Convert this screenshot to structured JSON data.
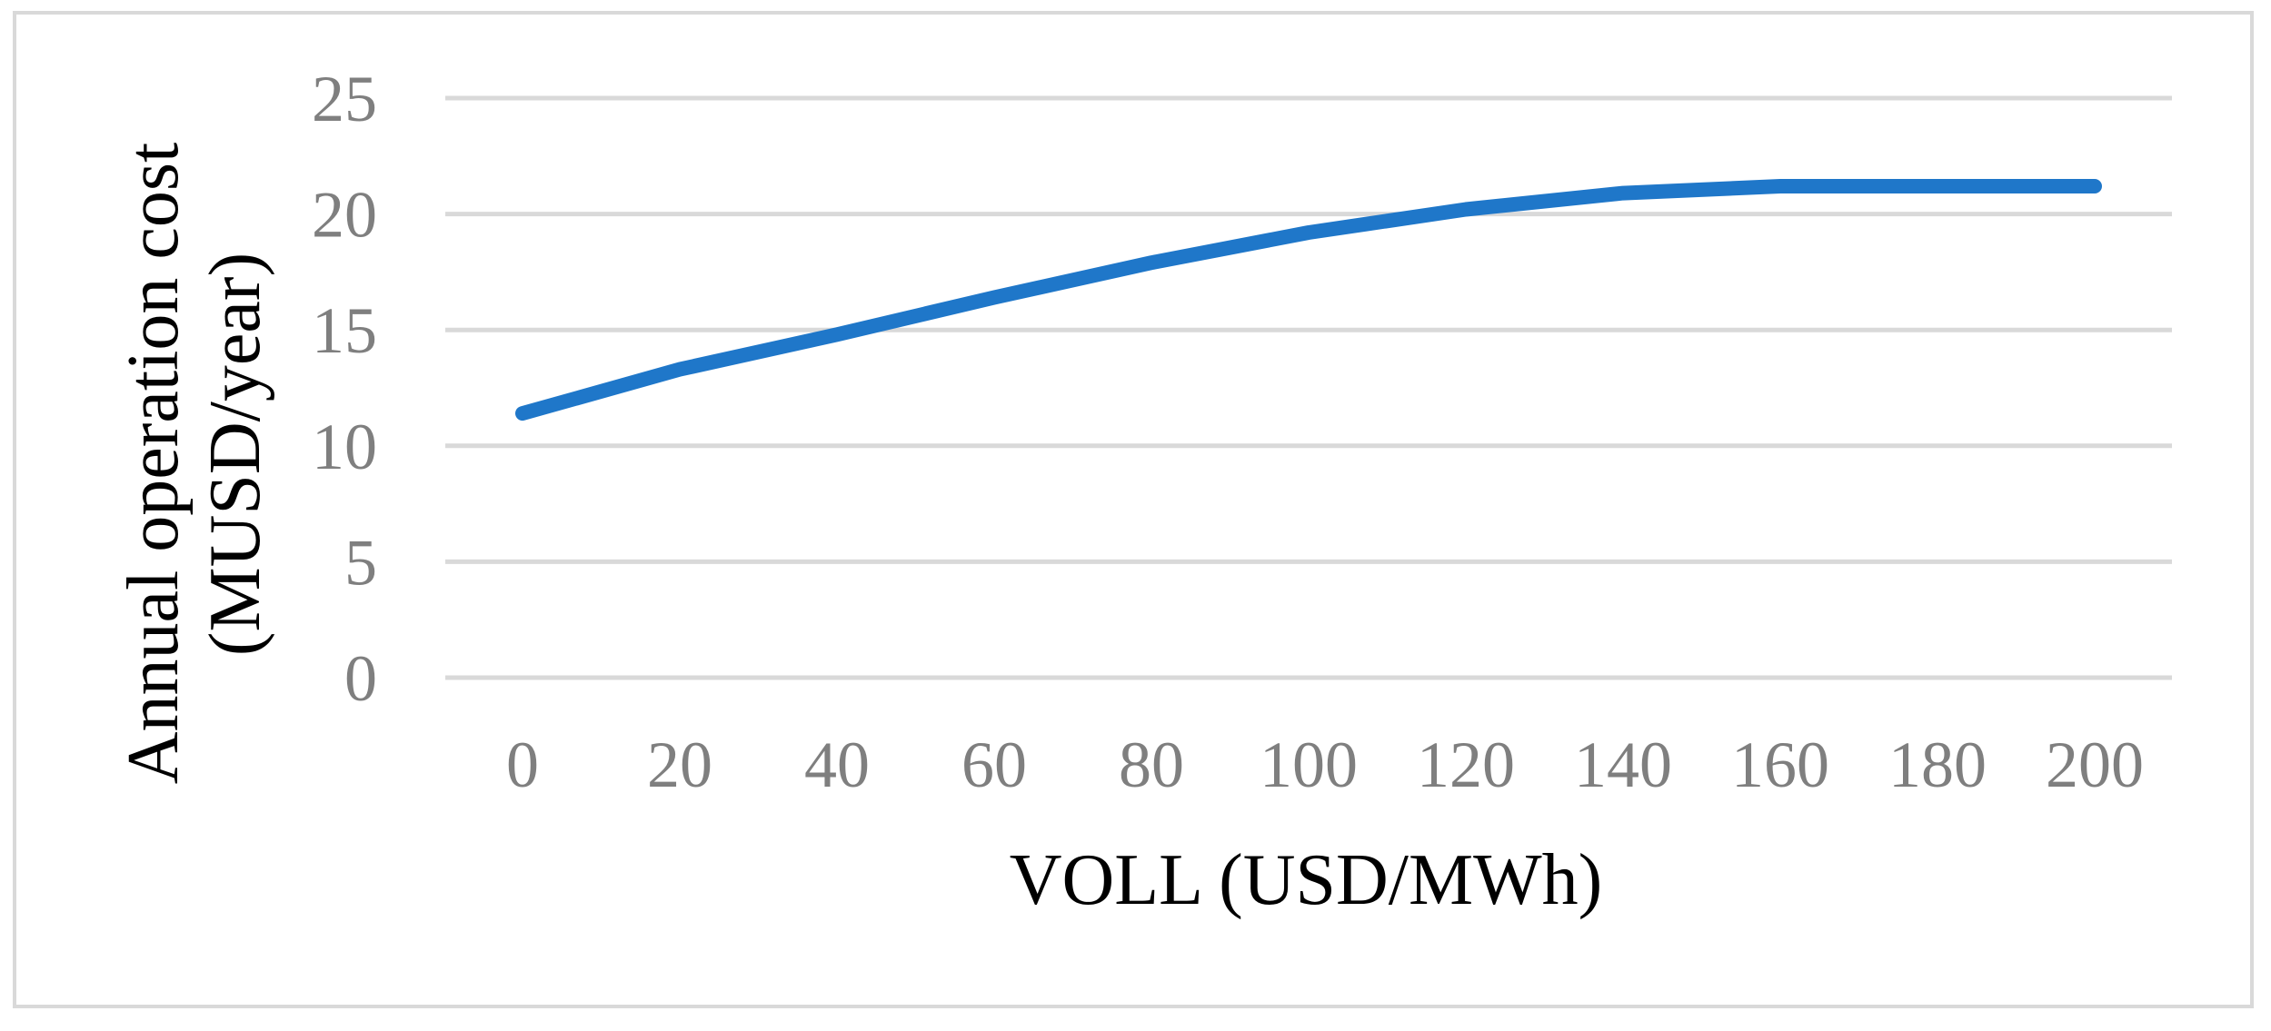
{
  "chart_data": {
    "type": "line",
    "title": "",
    "xlabel": "VOLL (USD/MWh)",
    "ylabel_lines": [
      "Annual operation cost",
      "(MUSD/year)"
    ],
    "x": [
      0,
      20,
      40,
      60,
      80,
      100,
      120,
      140,
      160,
      180,
      200
    ],
    "x_ticks": [
      "0",
      "20",
      "40",
      "60",
      "80",
      "100",
      "120",
      "140",
      "160",
      "180",
      "200"
    ],
    "y_ticks": [
      "0",
      "5",
      "10",
      "15",
      "20",
      "25"
    ],
    "ylim": [
      0,
      25
    ],
    "grid": true,
    "legend": "none",
    "series": [
      {
        "values": [
          11.4,
          13.3,
          14.8,
          16.4,
          17.9,
          19.2,
          20.2,
          20.9,
          21.2,
          21.2,
          21.2
        ],
        "color": "#1f77c9"
      }
    ]
  }
}
